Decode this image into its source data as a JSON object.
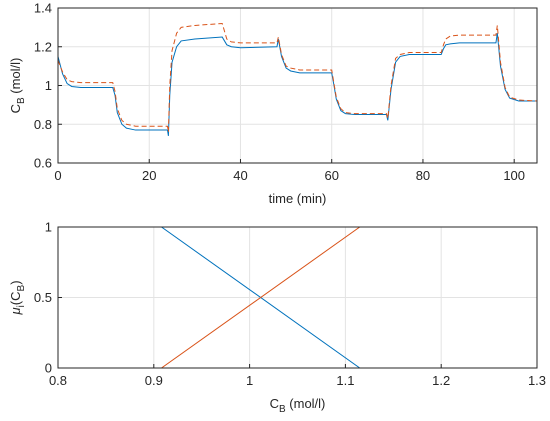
{
  "chart_data": [
    {
      "type": "line",
      "xlabel_parts": [
        "time (min)"
      ],
      "ylabel_parts": [
        "C",
        "B",
        " (mol/l)"
      ],
      "x": [
        0,
        1,
        2,
        3,
        5,
        12,
        12.5,
        13,
        14,
        15,
        17,
        24,
        24.2,
        24.5,
        25,
        26,
        27,
        30,
        36,
        36.5,
        37,
        38,
        40,
        48,
        48.3,
        49,
        50,
        51,
        53,
        60,
        60.5,
        61,
        62,
        63,
        65,
        72,
        72.3,
        73,
        74,
        75,
        77,
        84,
        84.5,
        85,
        86,
        88,
        96,
        96.3,
        97,
        98,
        99,
        101,
        105
      ],
      "series": [
        {
          "color": "#0072BD",
          "linestyle": "solid",
          "values": [
            1.15,
            1.06,
            1.01,
            0.995,
            0.99,
            0.99,
            0.95,
            0.86,
            0.8,
            0.78,
            0.77,
            0.77,
            0.74,
            0.95,
            1.12,
            1.2,
            1.23,
            1.24,
            1.25,
            1.23,
            1.21,
            1.2,
            1.195,
            1.2,
            1.24,
            1.15,
            1.09,
            1.075,
            1.065,
            1.065,
            1.0,
            0.93,
            0.87,
            0.855,
            0.85,
            0.85,
            0.82,
            0.98,
            1.12,
            1.15,
            1.16,
            1.16,
            1.19,
            1.21,
            1.215,
            1.22,
            1.22,
            1.27,
            1.1,
            0.98,
            0.935,
            0.92,
            0.92
          ]
        },
        {
          "color": "#D95319",
          "linestyle": "dashed",
          "values": [
            1.13,
            1.07,
            1.03,
            1.02,
            1.015,
            1.015,
            0.97,
            0.88,
            0.82,
            0.8,
            0.79,
            0.79,
            0.76,
            1.0,
            1.18,
            1.27,
            1.3,
            1.31,
            1.32,
            1.28,
            1.24,
            1.225,
            1.22,
            1.22,
            1.25,
            1.16,
            1.1,
            1.09,
            1.08,
            1.08,
            1.01,
            0.94,
            0.88,
            0.86,
            0.855,
            0.855,
            0.83,
            1.0,
            1.14,
            1.16,
            1.17,
            1.17,
            1.21,
            1.24,
            1.255,
            1.26,
            1.26,
            1.31,
            1.12,
            0.99,
            0.94,
            0.925,
            0.92
          ]
        }
      ],
      "xlim": [
        0,
        105
      ],
      "xticks": [
        0,
        20,
        40,
        60,
        80,
        100
      ],
      "ylim": [
        0.6,
        1.4
      ],
      "yticks": [
        0.6,
        0.8,
        1,
        1.2,
        1.4
      ],
      "grid": true
    },
    {
      "type": "line",
      "xlabel_parts": [
        "C",
        "B",
        " (mol/l)"
      ],
      "ylabel_parts": [
        "μ",
        "i",
        "(C",
        "B",
        ")"
      ],
      "x": [
        0.8,
        0.908,
        1.115,
        1.3
      ],
      "series": [
        {
          "color": "#0072BD",
          "linestyle": "solid",
          "values": [
            1,
            1,
            0,
            0
          ]
        },
        {
          "color": "#D95319",
          "linestyle": "solid",
          "values": [
            0,
            0,
            1,
            1
          ]
        }
      ],
      "xlim": [
        0.8,
        1.3
      ],
      "xticks": [
        0.8,
        0.9,
        1,
        1.1,
        1.2,
        1.3
      ],
      "ylim": [
        0,
        1
      ],
      "yticks": [
        0,
        0.5,
        1
      ],
      "grid": true
    }
  ]
}
